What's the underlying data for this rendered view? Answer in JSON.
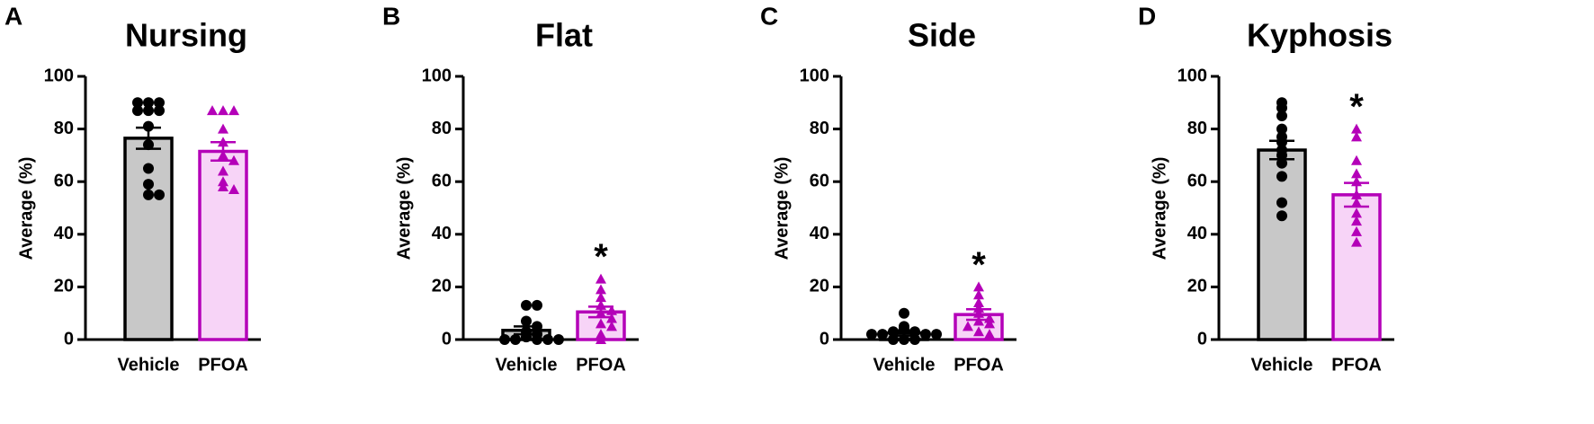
{
  "chart_data": [
    {
      "type": "bar",
      "panel": "A",
      "title": "Nursing",
      "ylabel": "Average (%)",
      "categories": [
        "Vehicle",
        "PFOA"
      ],
      "values": [
        76.5,
        71.5
      ],
      "errors": [
        4,
        3.5
      ],
      "points": [
        [
          90,
          90,
          90,
          87,
          87,
          87,
          81,
          74,
          65,
          59,
          55,
          55
        ],
        [
          87,
          87,
          87,
          80,
          75,
          70,
          68,
          64,
          60,
          58,
          57
        ]
      ],
      "fills": [
        "#c8c8c8",
        "#f7d4f7"
      ],
      "colors": [
        "#000000",
        "#b400b8"
      ],
      "markers": [
        "circle",
        "triangle"
      ],
      "ylim": [
        0,
        100
      ],
      "yticks": [
        0,
        20,
        40,
        60,
        80,
        100
      ]
    },
    {
      "type": "bar",
      "panel": "B",
      "title": "Flat",
      "ylabel": "Average (%)",
      "categories": [
        "Vehicle",
        "PFOA"
      ],
      "values": [
        3.5,
        10.5
      ],
      "errors": [
        1.5,
        2
      ],
      "points": [
        [
          13,
          13,
          7,
          5,
          3,
          2,
          1,
          0,
          0,
          0,
          0,
          0
        ],
        [
          23,
          19,
          16,
          13,
          11,
          10,
          8,
          6,
          5,
          2,
          0
        ]
      ],
      "fills": [
        "#c8c8c8",
        "#f7d4f7"
      ],
      "colors": [
        "#000000",
        "#b400b8"
      ],
      "markers": [
        "circle",
        "triangle"
      ],
      "significance": [
        null,
        "*"
      ],
      "ylim": [
        0,
        100
      ],
      "yticks": [
        0,
        20,
        40,
        60,
        80,
        100
      ]
    },
    {
      "type": "bar",
      "panel": "C",
      "title": "Side",
      "ylabel": "Average (%)",
      "categories": [
        "Vehicle",
        "PFOA"
      ],
      "values": [
        2.5,
        9.5
      ],
      "errors": [
        1,
        2
      ],
      "points": [
        [
          10,
          5,
          4,
          3,
          3,
          2,
          2,
          2,
          2,
          0,
          0,
          0
        ],
        [
          20,
          17,
          14,
          12,
          10,
          8,
          7,
          6,
          5,
          3,
          2
        ]
      ],
      "fills": [
        "#c8c8c8",
        "#f7d4f7"
      ],
      "colors": [
        "#000000",
        "#b400b8"
      ],
      "markers": [
        "circle",
        "triangle"
      ],
      "significance": [
        null,
        "*"
      ],
      "ylim": [
        0,
        100
      ],
      "yticks": [
        0,
        20,
        40,
        60,
        80,
        100
      ]
    },
    {
      "type": "bar",
      "panel": "D",
      "title": "Kyphosis",
      "ylabel": "Average (%)",
      "categories": [
        "Vehicle",
        "PFOA"
      ],
      "values": [
        72,
        55
      ],
      "errors": [
        3.5,
        4.5
      ],
      "points": [
        [
          90,
          88,
          85,
          80,
          77,
          75,
          72,
          70,
          67,
          62,
          52,
          47
        ],
        [
          80,
          77,
          68,
          63,
          60,
          55,
          52,
          48,
          45,
          41,
          37
        ]
      ],
      "fills": [
        "#c8c8c8",
        "#f7d4f7"
      ],
      "colors": [
        "#000000",
        "#b400b8"
      ],
      "markers": [
        "circle",
        "triangle"
      ],
      "significance": [
        null,
        "*"
      ],
      "ylim": [
        0,
        100
      ],
      "yticks": [
        0,
        20,
        40,
        60,
        80,
        100
      ]
    }
  ]
}
